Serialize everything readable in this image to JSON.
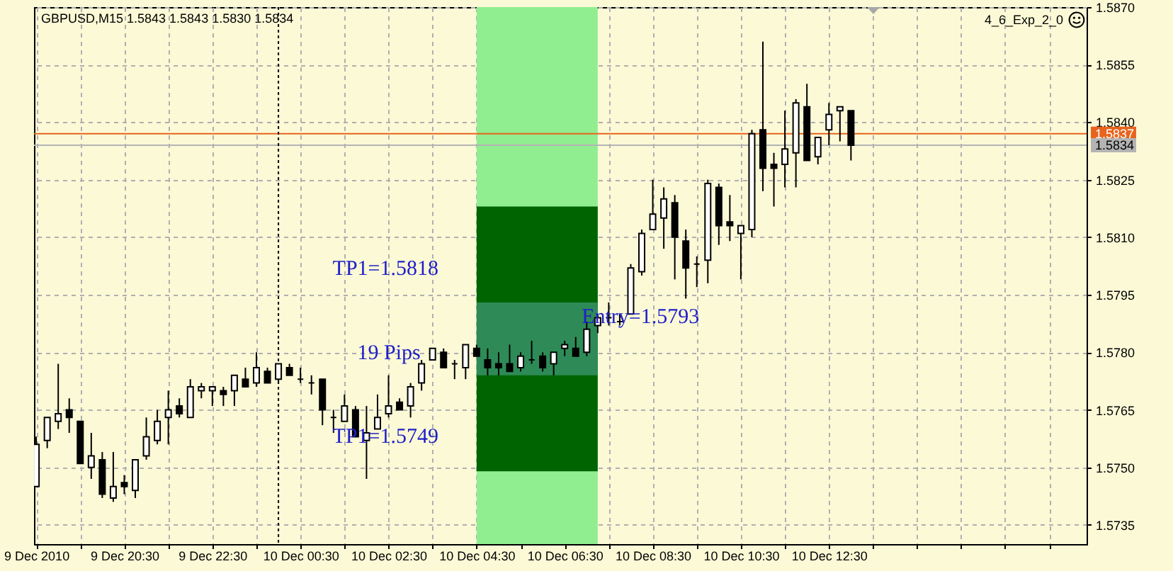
{
  "chart_data": {
    "type": "candlestick",
    "title": "GBPUSD,M15 1.5843 1.5843 1.5830 1.5834",
    "x": [
      "2010-12-09T18:30",
      "2010-12-09T18:45",
      "2010-12-09T19:00",
      "2010-12-09T19:15",
      "2010-12-09T19:30",
      "2010-12-09T19:45",
      "2010-12-09T20:00",
      "2010-12-09T20:15",
      "2010-12-09T20:30",
      "2010-12-09T20:45",
      "2010-12-09T21:00",
      "2010-12-09T21:15",
      "2010-12-09T21:30",
      "2010-12-09T21:45",
      "2010-12-09T22:00",
      "2010-12-09T22:15",
      "2010-12-09T22:30",
      "2010-12-09T22:45",
      "2010-12-09T23:00",
      "2010-12-09T23:15",
      "2010-12-09T23:30",
      "2010-12-09T23:45",
      "2010-12-10T00:00",
      "2010-12-10T00:15",
      "2010-12-10T00:30",
      "2010-12-10T00:45",
      "2010-12-10T01:00",
      "2010-12-10T01:15",
      "2010-12-10T01:30",
      "2010-12-10T01:45",
      "2010-12-10T02:00",
      "2010-12-10T02:15",
      "2010-12-10T02:30",
      "2010-12-10T02:45",
      "2010-12-10T03:00",
      "2010-12-10T03:15",
      "2010-12-10T03:30",
      "2010-12-10T03:45",
      "2010-12-10T04:00",
      "2010-12-10T04:15",
      "2010-12-10T04:30",
      "2010-12-10T04:45",
      "2010-12-10T05:00",
      "2010-12-10T05:15",
      "2010-12-10T05:30",
      "2010-12-10T05:45",
      "2010-12-10T06:00",
      "2010-12-10T06:15",
      "2010-12-10T06:30",
      "2010-12-10T06:45",
      "2010-12-10T07:00",
      "2010-12-10T07:15",
      "2010-12-10T07:30",
      "2010-12-10T07:45",
      "2010-12-10T08:00",
      "2010-12-10T08:15",
      "2010-12-10T08:30",
      "2010-12-10T08:45",
      "2010-12-10T09:00",
      "2010-12-10T09:15",
      "2010-12-10T09:30",
      "2010-12-10T09:45",
      "2010-12-10T10:00",
      "2010-12-10T10:15",
      "2010-12-10T10:30",
      "2010-12-10T10:45",
      "2010-12-10T11:00",
      "2010-12-10T11:15",
      "2010-12-10T11:30",
      "2010-12-10T11:45",
      "2010-12-10T12:00",
      "2010-12-10T12:15",
      "2010-12-10T12:30",
      "2010-12-10T12:45",
      "2010-12-10T13:00"
    ],
    "ohlc": [
      [
        1.5745,
        1.5758,
        1.5745,
        1.5756
      ],
      [
        1.5757,
        1.5763,
        1.5755,
        1.5763
      ],
      [
        1.5762,
        1.5777,
        1.576,
        1.5764
      ],
      [
        1.5765,
        1.5768,
        1.5759,
        1.5763
      ],
      [
        1.5762,
        1.5762,
        1.5751,
        1.5751
      ],
      [
        1.575,
        1.5759,
        1.5747,
        1.5753
      ],
      [
        1.5752,
        1.5754,
        1.5742,
        1.5743
      ],
      [
        1.5742,
        1.5754,
        1.5741,
        1.5745
      ],
      [
        1.5746,
        1.5748,
        1.5743,
        1.5745
      ],
      [
        1.5744,
        1.5752,
        1.5742,
        1.5752
      ],
      [
        1.5753,
        1.5763,
        1.5752,
        1.5758
      ],
      [
        1.5757,
        1.5765,
        1.5756,
        1.5762
      ],
      [
        1.5763,
        1.577,
        1.5756,
        1.5765
      ],
      [
        1.5766,
        1.5768,
        1.5763,
        1.5764
      ],
      [
        1.5763,
        1.5773,
        1.5763,
        1.5771
      ],
      [
        1.577,
        1.5772,
        1.5768,
        1.5771
      ],
      [
        1.577,
        1.5771,
        1.5766,
        1.5771
      ],
      [
        1.577,
        1.5771,
        1.5766,
        1.5769
      ],
      [
        1.577,
        1.5774,
        1.5766,
        1.5774
      ],
      [
        1.5773,
        1.5776,
        1.5771,
        1.5771
      ],
      [
        1.5772,
        1.578,
        1.5771,
        1.5776
      ],
      [
        1.5775,
        1.5776,
        1.5772,
        1.5772
      ],
      [
        1.5773,
        1.5777,
        1.5772,
        1.5777
      ],
      [
        1.5776,
        1.5777,
        1.5774,
        1.5774
      ],
      [
        1.5773,
        1.5776,
        1.5772,
        1.5773
      ],
      [
        1.5772,
        1.5774,
        1.5769,
        1.5772
      ],
      [
        1.5773,
        1.5773,
        1.5761,
        1.5765
      ],
      [
        1.5763,
        1.5765,
        1.5759,
        1.5763
      ],
      [
        1.5762,
        1.5769,
        1.5762,
        1.5766
      ],
      [
        1.5765,
        1.5766,
        1.5758,
        1.5758
      ],
      [
        1.5757,
        1.5766,
        1.5747,
        1.5759
      ],
      [
        1.576,
        1.5769,
        1.576,
        1.5763
      ],
      [
        1.5764,
        1.5774,
        1.5763,
        1.5766
      ],
      [
        1.5767,
        1.5768,
        1.5765,
        1.5765
      ],
      [
        1.5766,
        1.5772,
        1.5763,
        1.5771
      ],
      [
        1.5772,
        1.5778,
        1.577,
        1.5777
      ],
      [
        1.5778,
        1.5781,
        1.5778,
        1.5781
      ],
      [
        1.578,
        1.5781,
        1.5776,
        1.5776
      ],
      [
        1.5777,
        1.5778,
        1.5773,
        1.5777
      ],
      [
        1.5776,
        1.5782,
        1.5773,
        1.5782
      ],
      [
        1.5781,
        1.5782,
        1.5779,
        1.5779
      ],
      [
        1.5778,
        1.5781,
        1.5774,
        1.5776
      ],
      [
        1.5777,
        1.578,
        1.5774,
        1.5776
      ],
      [
        1.5777,
        1.5782,
        1.5775,
        1.5775
      ],
      [
        1.5776,
        1.578,
        1.5775,
        1.5779
      ],
      [
        1.5778,
        1.5783,
        1.5777,
        1.5778
      ],
      [
        1.5779,
        1.578,
        1.5775,
        1.5776
      ],
      [
        1.5777,
        1.578,
        1.5774,
        1.578
      ],
      [
        1.5781,
        1.5783,
        1.5779,
        1.5782
      ],
      [
        1.5781,
        1.5784,
        1.5779,
        1.5779
      ],
      [
        1.578,
        1.5788,
        1.5779,
        1.5786
      ],
      [
        1.5787,
        1.579,
        1.5785,
        1.5789
      ],
      [
        1.5789,
        1.5793,
        1.5787,
        1.5789
      ],
      [
        1.5788,
        1.579,
        1.5787,
        1.5788
      ],
      [
        1.579,
        1.5803,
        1.579,
        1.5802
      ],
      [
        1.5801,
        1.5812,
        1.58,
        1.5811
      ],
      [
        1.5812,
        1.5825,
        1.5812,
        1.5816
      ],
      [
        1.5815,
        1.5823,
        1.5807,
        1.582
      ],
      [
        1.5819,
        1.5821,
        1.5799,
        1.581
      ],
      [
        1.5809,
        1.5812,
        1.5794,
        1.5802
      ],
      [
        1.5803,
        1.5805,
        1.5797,
        1.5803
      ],
      [
        1.5804,
        1.5825,
        1.5798,
        1.5824
      ],
      [
        1.5823,
        1.5824,
        1.5808,
        1.5813
      ],
      [
        1.5814,
        1.5821,
        1.5809,
        1.5813
      ],
      [
        1.5811,
        1.5813,
        1.5799,
        1.5813
      ],
      [
        1.5812,
        1.5838,
        1.581,
        1.5837
      ],
      [
        1.5838,
        1.5861,
        1.5822,
        1.5828
      ],
      [
        1.5829,
        1.5832,
        1.5818,
        1.5828
      ],
      [
        1.5829,
        1.5843,
        1.5823,
        1.5833
      ],
      [
        1.5832,
        1.5846,
        1.5823,
        1.5845
      ],
      [
        1.5844,
        1.585,
        1.583,
        1.583
      ],
      [
        1.5831,
        1.5836,
        1.5829,
        1.5836
      ],
      [
        1.5838,
        1.5845,
        1.5834,
        1.5842
      ],
      [
        1.5843,
        1.5844,
        1.5835,
        1.5844
      ],
      [
        1.5843,
        1.5843,
        1.583,
        1.5834
      ]
    ],
    "colors": [
      "#ffffff",
      "#ffffff",
      "#ffffff",
      "#000000",
      "#000000",
      "#ffffff",
      "#000000",
      "#ffffff",
      "#000000",
      "#ffffff",
      "#ffffff",
      "#ffffff",
      "#ffffff",
      "#000000",
      "#ffffff",
      "#ffffff",
      "#ffffff",
      "#000000",
      "#ffffff",
      "#000000",
      "#ffffff",
      "#000000",
      "#ffffff",
      "#000000",
      "#000000",
      "#000000",
      "#000000",
      "#000000",
      "#ffffff",
      "#000000",
      "#ffffff",
      "#ffffff",
      "#ffffff",
      "#000000",
      "#ffffff",
      "#ffffff",
      "#ffffff",
      "#000000",
      "#000000",
      "#ffffff",
      "#000000",
      "#000000",
      "#000000",
      "#000000",
      "#ffffff",
      "#000000",
      "#000000",
      "#ffffff",
      "#ffffff",
      "#000000",
      "#ffffff",
      "#ffffff",
      "#000000",
      "#000000",
      "#ffffff",
      "#ffffff",
      "#ffffff",
      "#ffffff",
      "#000000",
      "#000000",
      "#000000",
      "#ffffff",
      "#000000",
      "#000000",
      "#ffffff",
      "#ffffff",
      "#000000",
      "#000000",
      "#ffffff",
      "#ffffff",
      "#000000",
      "#ffffff",
      "#ffffff",
      "#ffffff",
      "#000000"
    ],
    "series": [
      {
        "type": "line",
        "color": "#006400",
        "x": [
          "2010-12-10T04:30",
          "2010-12-10T07:15"
        ],
        "values": [
          null,
          null
        ],
        "lower": [
          1.5749,
          1.5749
        ],
        "upper": [
          1.5818,
          1.5818
        ]
      },
      {
        "type": "line",
        "color": "#2e8b57",
        "x": [
          "2010-12-10T04:30",
          "2010-12-10T07:15"
        ],
        "values": [
          null,
          null
        ],
        "lower": [
          1.5774,
          1.5774
        ],
        "upper": [
          1.5793,
          1.5793
        ]
      }
    ],
    "bands": [
      {
        "axis": "x",
        "from": "2010-12-10T04:30",
        "to": "2010-12-10T07:15",
        "color": "#90ee90"
      }
    ],
    "ref_lines": [
      {
        "axis": "y",
        "value": 1.5837,
        "label": "1.5837",
        "color": "#e8641e"
      },
      {
        "axis": "y",
        "value": 1.5834,
        "label": "1.5834",
        "color": "#b4b4b4"
      },
      {
        "axis": "x",
        "value": "2010-12-10T00:00",
        "color": "#000000",
        "line_style": "dotted"
      }
    ],
    "annotations": [
      "TP1=1.5818",
      "19 Pips",
      "TP1=1.5749",
      "Entry=1.5793",
      "4_6_Exp_2_0"
    ],
    "xlim": [
      "2010-12-09T18:27",
      "2010-12-10T18:21"
    ],
    "xticks": [
      {
        "value": "2010-12-09T18:30",
        "label": "9 Dec 2010"
      },
      {
        "value": "2010-12-09T19:30",
        "label": null
      },
      {
        "value": "2010-12-09T20:30",
        "label": "9 Dec 20:30"
      },
      {
        "value": "2010-12-09T21:30",
        "label": null
      },
      {
        "value": "2010-12-09T22:30",
        "label": "9 Dec 22:30"
      },
      {
        "value": "2010-12-09T23:30",
        "label": null
      },
      {
        "value": "2010-12-10T00:30",
        "label": "10 Dec 00:30"
      },
      {
        "value": "2010-12-10T01:30",
        "label": null
      },
      {
        "value": "2010-12-10T02:30",
        "label": "10 Dec 02:30"
      },
      {
        "value": "2010-12-10T03:30",
        "label": null
      },
      {
        "value": "2010-12-10T04:30",
        "label": "10 Dec 04:30"
      },
      {
        "value": "2010-12-10T05:30",
        "label": null
      },
      {
        "value": "2010-12-10T06:30",
        "label": "10 Dec 06:30"
      },
      {
        "value": "2010-12-10T07:30",
        "label": null
      },
      {
        "value": "2010-12-10T08:30",
        "label": "10 Dec 08:30"
      },
      {
        "value": "2010-12-10T09:30",
        "label": null
      },
      {
        "value": "2010-12-10T10:30",
        "label": "10 Dec 10:30"
      },
      {
        "value": "2010-12-10T11:30",
        "label": null
      },
      {
        "value": "2010-12-10T12:30",
        "label": "10 Dec 12:30"
      },
      {
        "value": "2010-12-10T13:30",
        "label": null
      },
      {
        "value": "2010-12-10T14:30",
        "label": null
      },
      {
        "value": "2010-12-10T15:30",
        "label": null
      },
      {
        "value": "2010-12-10T16:30",
        "label": null
      },
      {
        "value": "2010-12-10T17:30",
        "label": null
      }
    ],
    "ylim": [
      1.573,
      1.587
    ],
    "yticks": [
      1.5735,
      {
        "value": 1.575,
        "label": "1.5750"
      },
      1.5765,
      {
        "value": 1.578,
        "label": "1.5780"
      },
      1.5795,
      {
        "value": 1.581,
        "label": "1.5810"
      },
      1.5825,
      {
        "value": 1.584,
        "label": "1.5840"
      },
      1.5855,
      {
        "value": 1.587,
        "label": "1.5870"
      }
    ],
    "grid": true
  }
}
